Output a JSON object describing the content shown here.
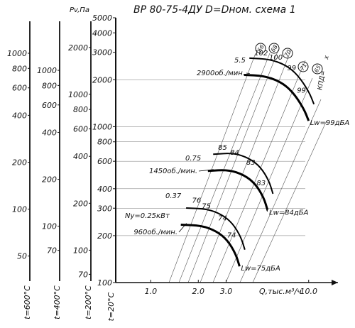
{
  "chart_data": {
    "type": "line",
    "title": "ВР 80-75-4ДУ D=Dном. схема 1",
    "xlabel": "Q,тыс.м³/ч",
    "ylabel": "Pv,Па",
    "x_scale": "log",
    "y_scale": "log",
    "xlim": [
      0.6,
      17
    ],
    "ylim": [
      100,
      5000
    ],
    "x_ticks": [
      {
        "value": 1.0,
        "label": "1.0"
      },
      {
        "value": 2.0,
        "label": "2.0"
      },
      {
        "value": 3.0,
        "label": "3.0"
      },
      {
        "value": 10.0,
        "label": "10.0"
      }
    ],
    "main_axis": {
      "caption": "t=20°С",
      "ticks": [
        {
          "value": 100,
          "label": "100"
        },
        {
          "value": 200,
          "label": "200"
        },
        {
          "value": 300,
          "label": "300"
        },
        {
          "value": 400,
          "label": "400"
        },
        {
          "value": 600,
          "label": "600"
        },
        {
          "value": 800,
          "label": "800"
        },
        {
          "value": 1000,
          "label": "1000"
        },
        {
          "value": 2000,
          "label": "2000"
        },
        {
          "value": 3000,
          "label": "3000"
        },
        {
          "value": 4000,
          "label": "4000"
        },
        {
          "value": 5000,
          "label": "5000"
        }
      ]
    },
    "aux_axes": [
      {
        "caption": "t=200°С",
        "ratio": 0.62,
        "ticks": [
          {
            "value": 70,
            "label": "70"
          },
          {
            "value": 100,
            "label": "100"
          },
          {
            "value": 200,
            "label": "200"
          },
          {
            "value": 400,
            "label": "400"
          },
          {
            "value": 600,
            "label": "600"
          },
          {
            "value": 800,
            "label": "800"
          },
          {
            "value": 1000,
            "label": "1000"
          },
          {
            "value": 2000,
            "label": "2000"
          }
        ]
      },
      {
        "caption": "t=400°С",
        "ratio": 0.435,
        "ticks": [
          {
            "value": 70,
            "label": "70"
          },
          {
            "value": 100,
            "label": "100"
          },
          {
            "value": 200,
            "label": "200"
          },
          {
            "value": 400,
            "label": "400"
          },
          {
            "value": 600,
            "label": "600"
          },
          {
            "value": 800,
            "label": "800"
          },
          {
            "value": 1000,
            "label": "1000"
          }
        ]
      },
      {
        "caption": "t=600°С",
        "ratio": 0.338,
        "ticks": [
          {
            "value": 50,
            "label": "50"
          },
          {
            "value": 100,
            "label": "100"
          },
          {
            "value": 200,
            "label": "200"
          },
          {
            "value": 400,
            "label": "400"
          },
          {
            "value": 600,
            "label": "600"
          },
          {
            "value": 800,
            "label": "800"
          },
          {
            "value": 1000,
            "label": "1000"
          }
        ]
      }
    ],
    "efficiency_label": "КПД=",
    "efficiency_values": [
      {
        "value": "66",
        "circled": true
      },
      {
        "value": "68",
        "circled": true
      },
      {
        "value": "70",
        "circled": true
      },
      {
        "value": "71",
        "circled": true
      },
      {
        "value": "65",
        "circled": true
      }
    ],
    "efficiency_x_prefix": "",
    "efficiency_x_suffix": "х",
    "series": [
      {
        "name": "2900об./мин.",
        "speed_label": "2900об./мин.",
        "noise_label": "Lw=99дБА",
        "power_label": "5.5",
        "curve": [
          [
            3.9,
            2150
          ],
          [
            5.2,
            2120
          ],
          [
            6.6,
            1950
          ],
          [
            7.9,
            1680
          ],
          [
            9.3,
            1310
          ],
          [
            10.0,
            1090
          ]
        ],
        "marks": [
          {
            "q": 5.0,
            "p": 2870,
            "text": "102"
          },
          {
            "q": 6.2,
            "p": 2700,
            "text": "100"
          },
          {
            "q": 7.8,
            "p": 2300,
            "text": "99"
          },
          {
            "q": 9.0,
            "p": 1650,
            "text": "99"
          }
        ]
      },
      {
        "name": "1450об./мин.",
        "speed_label": "1450об./мин.",
        "noise_label": "Lw=84дБА",
        "power_label": "0.75",
        "curve": [
          [
            2.3,
            520
          ],
          [
            3.1,
            530
          ],
          [
            3.9,
            490
          ],
          [
            4.6,
            430
          ],
          [
            5.2,
            350
          ],
          [
            5.5,
            290
          ]
        ],
        "marks": [
          {
            "q": 2.85,
            "p": 710,
            "text": "85"
          },
          {
            "q": 3.4,
            "p": 660,
            "text": "84"
          },
          {
            "q": 4.3,
            "p": 570,
            "text": "83"
          },
          {
            "q": 5.0,
            "p": 420,
            "text": "83"
          }
        ]
      },
      {
        "name": "960об./мин.",
        "speed_label": "960об./мин.",
        "noise_label": "Lw=75дБА",
        "power_label": "0.37",
        "ny_label": "Ny=0.25кВт",
        "curve": [
          [
            1.55,
            235
          ],
          [
            2.1,
            232
          ],
          [
            2.6,
            214
          ],
          [
            3.05,
            188
          ],
          [
            3.45,
            153
          ],
          [
            3.65,
            127
          ]
        ],
        "marks": [
          {
            "q": 1.95,
            "p": 325,
            "text": "76"
          },
          {
            "q": 2.25,
            "p": 300,
            "text": "75"
          },
          {
            "q": 2.85,
            "p": 250,
            "text": "74"
          },
          {
            "q": 3.25,
            "p": 195,
            "text": "74"
          }
        ]
      }
    ],
    "grid": true,
    "legend": "none"
  }
}
